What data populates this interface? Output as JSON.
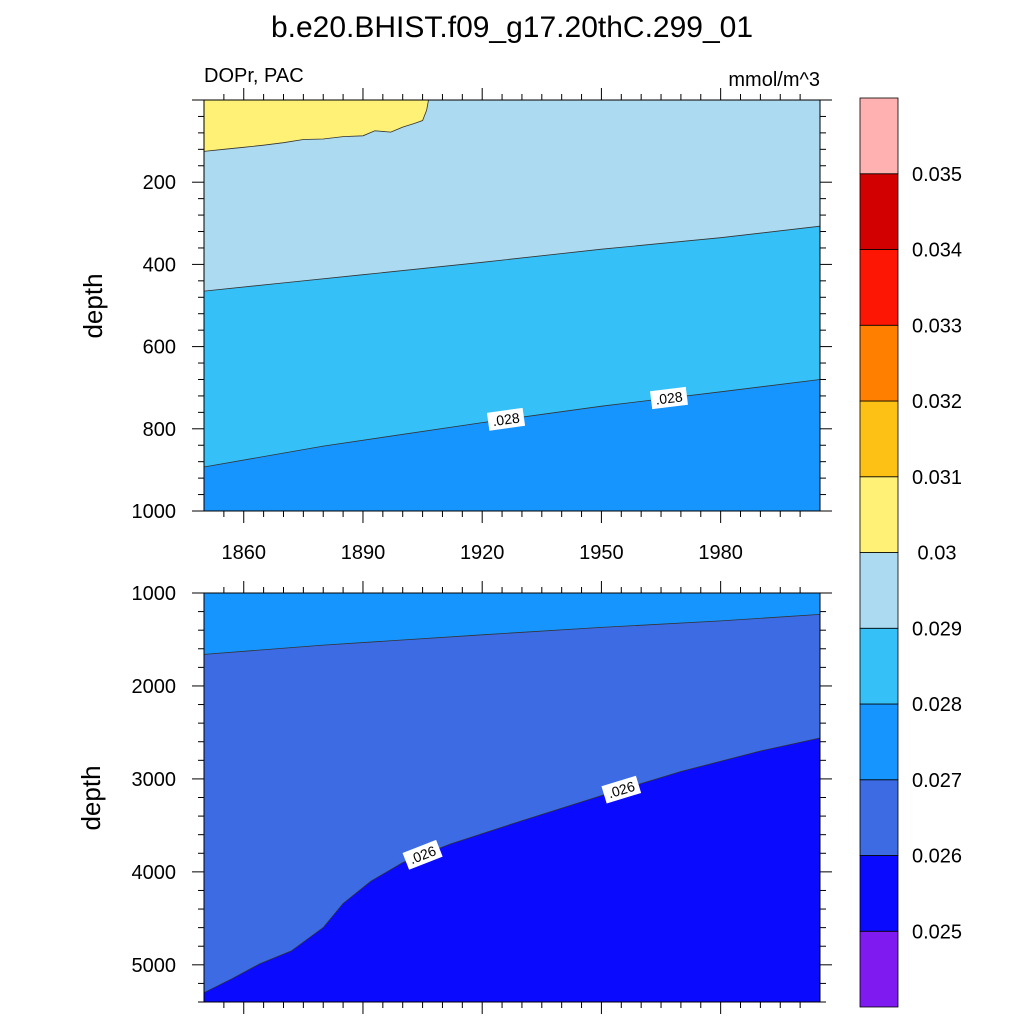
{
  "title": "b.e20.BHIST.f09_g17.20thC.299_01",
  "chart_data": [
    {
      "type": "heatmap",
      "subtype": "filled-contour",
      "panel": "upper",
      "subtitle_left": "DOPr, PAC",
      "subtitle_right": "mmol/m^3",
      "ylabel": "depth",
      "xlabel": "",
      "xlim": [
        1850,
        2005
      ],
      "ylim": [
        1000,
        0
      ],
      "y_inverted": true,
      "xticks": [
        1860,
        1890,
        1920,
        1950,
        1980
      ],
      "yticks": [
        200,
        400,
        600,
        800,
        1000
      ],
      "contour_lines": [
        {
          "level": 0.03,
          "points": [
            [
              1850,
              125
            ],
            [
              1855,
              120
            ],
            [
              1860,
              115
            ],
            [
              1865,
              110
            ],
            [
              1870,
              104
            ],
            [
              1875,
              96
            ],
            [
              1880,
              95
            ],
            [
              1885,
              89
            ],
            [
              1890,
              87
            ],
            [
              1893,
              75
            ],
            [
              1897,
              78
            ],
            [
              1900,
              66
            ],
            [
              1903,
              57
            ],
            [
              1905,
              50
            ],
            [
              1906,
              25
            ],
            [
              1906.5,
              0
            ]
          ]
        },
        {
          "level": 0.029,
          "points": [
            [
              1850,
              465
            ],
            [
              1870,
              445
            ],
            [
              1890,
              425
            ],
            [
              1920,
              395
            ],
            [
              1950,
              363
            ],
            [
              1980,
              335
            ],
            [
              2005,
              307
            ]
          ]
        },
        {
          "level": 0.028,
          "label": ".028",
          "label_x": [
            1926,
            1967
          ],
          "points": [
            [
              1850,
              893
            ],
            [
              1880,
              842
            ],
            [
              1920,
              785
            ],
            [
              1950,
              745
            ],
            [
              1980,
              710
            ],
            [
              2005,
              680
            ]
          ]
        }
      ]
    },
    {
      "type": "heatmap",
      "subtype": "filled-contour",
      "panel": "lower",
      "ylabel": "depth",
      "xlabel": "",
      "xlim": [
        1850,
        2005
      ],
      "ylim": [
        5400,
        1000
      ],
      "y_inverted": true,
      "xticks": [
        1860,
        1890,
        1920,
        1950,
        1980
      ],
      "yticks": [
        1000,
        2000,
        3000,
        4000,
        5000
      ],
      "contour_lines": [
        {
          "level": 0.027,
          "points": [
            [
              1850,
              1660
            ],
            [
              1880,
              1560
            ],
            [
              1920,
              1450
            ],
            [
              1950,
              1370
            ],
            [
              1980,
              1300
            ],
            [
              2005,
              1230
            ]
          ]
        },
        {
          "level": 0.026,
          "label": ".026",
          "label_x": [
            1905,
            1955
          ],
          "points": [
            [
              1850,
              5300
            ],
            [
              1857,
              5150
            ],
            [
              1864,
              4990
            ],
            [
              1872,
              4850
            ],
            [
              1880,
              4600
            ],
            [
              1885,
              4340
            ],
            [
              1892,
              4100
            ],
            [
              1900,
              3900
            ],
            [
              1912,
              3700
            ],
            [
              1930,
              3450
            ],
            [
              1950,
              3180
            ],
            [
              1970,
              2920
            ],
            [
              1990,
              2700
            ],
            [
              2005,
              2560
            ]
          ]
        }
      ]
    }
  ],
  "colorbar": {
    "labels": [
      "0.025",
      "0.026",
      "0.027",
      "0.028",
      "0.029",
      "0.03",
      "0.031",
      "0.032",
      "0.033",
      "0.034",
      "0.035"
    ],
    "colors_bottom_to_top": [
      "#7f1bf0",
      "#0a0aff",
      "#3c6be3",
      "#1795ff",
      "#35c0f7",
      "#acdaf0",
      "#fff076",
      "#fdc014",
      "#ff7f00",
      "#fe1605",
      "#d20000",
      "#ffb0b0"
    ]
  },
  "colors": {
    "upper_bands_top_to_bottom": [
      "#fff076",
      "#acdaf0",
      "#35c0f7",
      "#1795ff"
    ],
    "lower_bands_top_to_bottom": [
      "#1795ff",
      "#3c6be3",
      "#0a0aff"
    ]
  }
}
